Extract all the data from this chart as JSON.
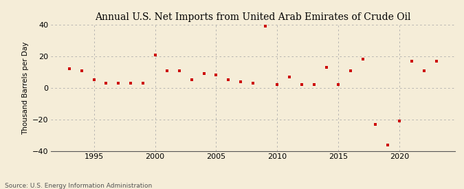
{
  "title": "Annual U.S. Net Imports from United Arab Emirates of Crude Oil",
  "ylabel": "Thousand Barrels per Day",
  "source": "Source: U.S. Energy Information Administration",
  "years": [
    1993,
    1994,
    1995,
    1996,
    1997,
    1998,
    1999,
    2000,
    2001,
    2002,
    2003,
    2004,
    2005,
    2006,
    2007,
    2008,
    2009,
    2010,
    2011,
    2012,
    2013,
    2014,
    2015,
    2016,
    2017,
    2018,
    2019,
    2020,
    2021,
    2022,
    2023
  ],
  "values": [
    12,
    11,
    5,
    3,
    3,
    3,
    3,
    21,
    11,
    11,
    5,
    9,
    8,
    5,
    4,
    3,
    39,
    2,
    7,
    2,
    2,
    13,
    2,
    11,
    18,
    -23,
    -36,
    -21,
    17,
    11,
    17
  ],
  "marker_color": "#cc0000",
  "bg_color": "#f5edd8",
  "grid_color": "#aaaaaa",
  "ylim": [
    -40,
    40
  ],
  "yticks": [
    -40,
    -20,
    0,
    20,
    40
  ],
  "xlim": [
    1991.5,
    2024.5
  ],
  "xticks": [
    1995,
    2000,
    2005,
    2010,
    2015,
    2020
  ]
}
